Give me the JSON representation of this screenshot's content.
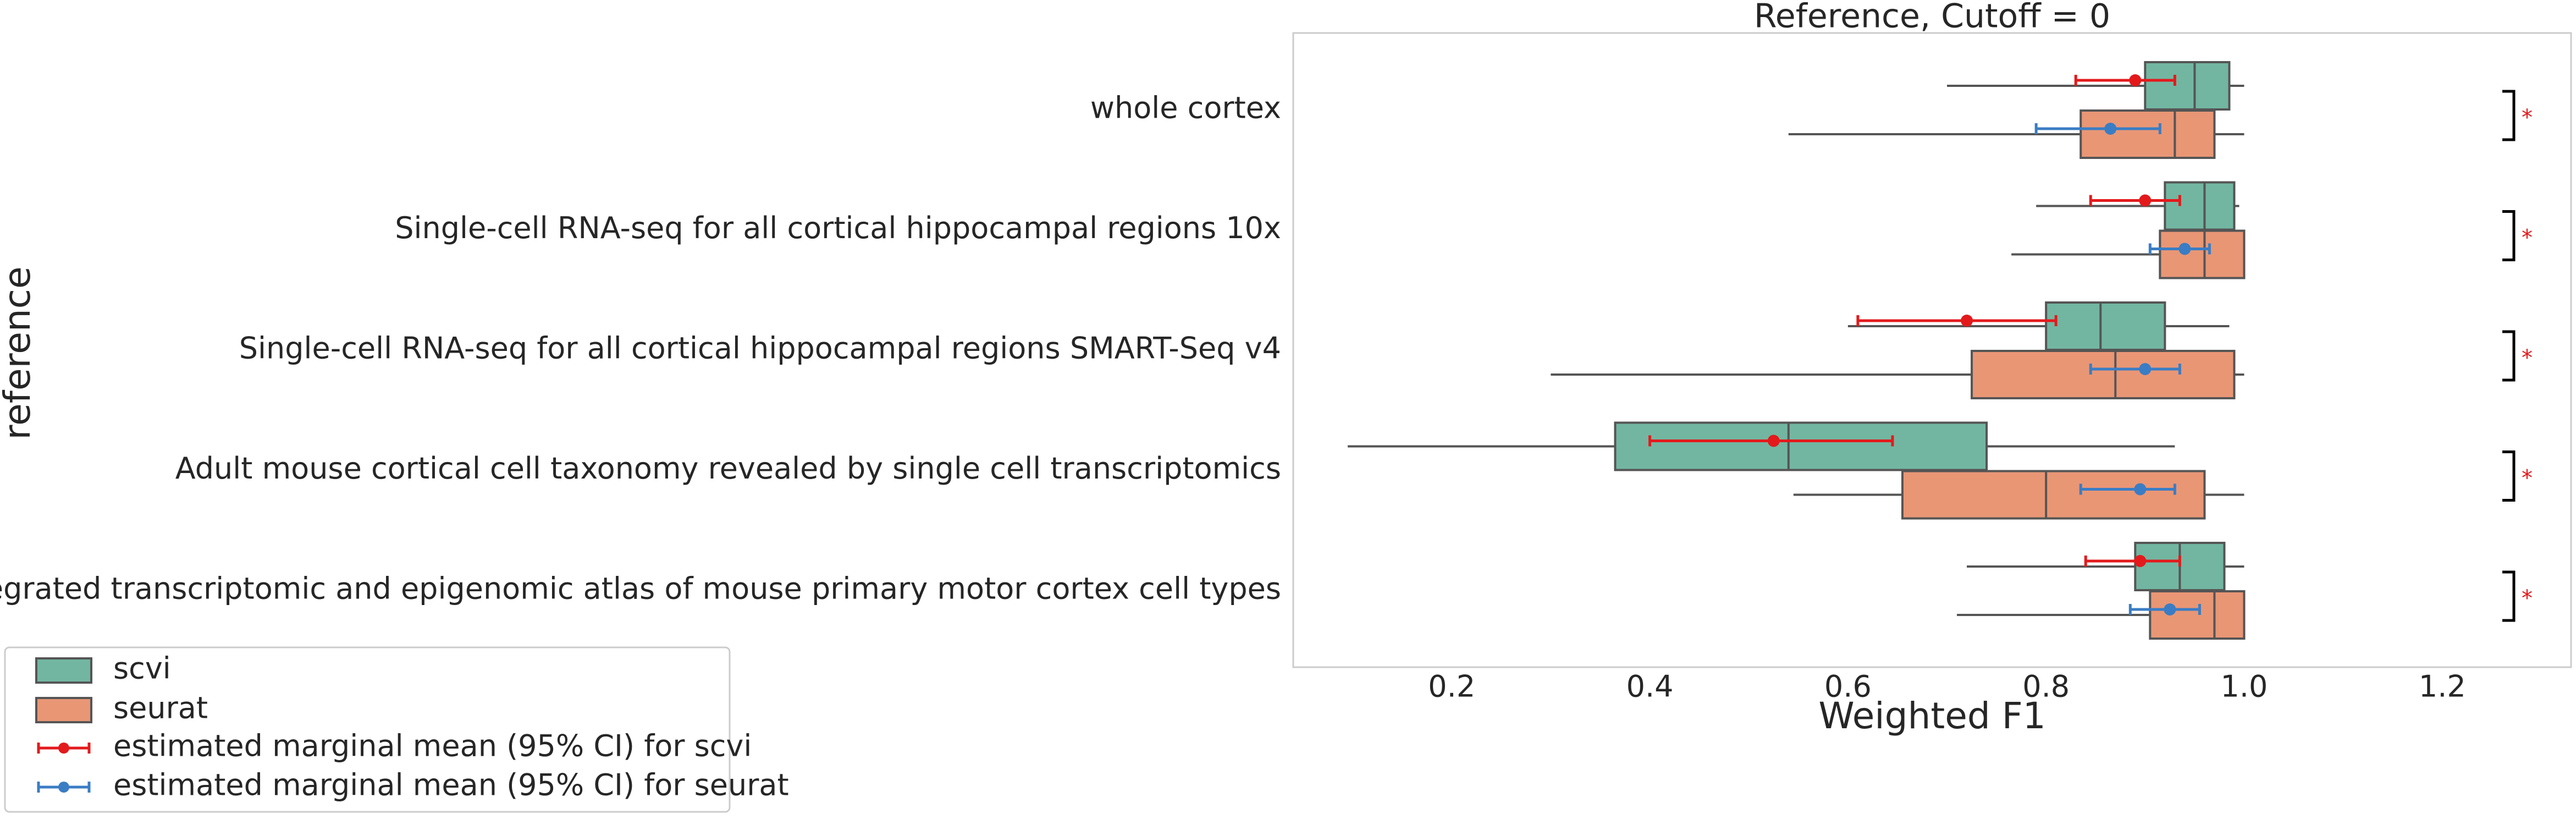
{
  "chart_data": {
    "type": "box",
    "title": "Reference, Cutoff = 0",
    "xlabel": "Weighted F1",
    "ylabel": "reference",
    "categories": [
      "whole cortex",
      "Single-cell RNA-seq for all cortical  hippocampal regions 10x",
      "Single-cell RNA-seq for all cortical  hippocampal regions SMART-Seq v4",
      "Adult mouse cortical cell taxonomy revealed by single cell transcriptomics",
      "An integrated transcriptomic and epigenomic atlas of mouse primary motor cortex cell types"
    ],
    "series": [
      {
        "name": "scvi",
        "color": "#72b6a1",
        "whislo": [
          0.7,
          0.79,
          0.6,
          0.095,
          0.72
        ],
        "q1": [
          0.9,
          0.92,
          0.8,
          0.365,
          0.89
        ],
        "med": [
          0.95,
          0.96,
          0.855,
          0.54,
          0.935
        ],
        "q3": [
          0.985,
          0.99,
          0.92,
          0.74,
          0.98
        ],
        "whishi": [
          1.0,
          0.995,
          0.985,
          0.93,
          1.0
        ]
      },
      {
        "name": "seurat",
        "color": "#e99675",
        "whislo": [
          0.54,
          0.765,
          0.3,
          0.545,
          0.71
        ],
        "q1": [
          0.835,
          0.915,
          0.725,
          0.655,
          0.905
        ],
        "med": [
          0.93,
          0.96,
          0.87,
          0.8,
          0.97
        ],
        "q3": [
          0.97,
          1.0,
          0.99,
          0.96,
          1.0
        ],
        "whishi": [
          1.0,
          1.0,
          1.0,
          1.0,
          1.0
        ]
      }
    ],
    "means": [
      {
        "name": "estimated marginal mean (95% CI) for scvi",
        "color": "#e31a1c",
        "values": [
          0.89,
          0.9,
          0.72,
          0.525,
          0.895
        ],
        "ci_low": [
          0.83,
          0.845,
          0.61,
          0.4,
          0.84
        ],
        "ci_high": [
          0.93,
          0.935,
          0.81,
          0.645,
          0.935
        ]
      },
      {
        "name": "estimated marginal mean (95% CI) for seurat",
        "color": "#3a7dc4",
        "values": [
          0.865,
          0.94,
          0.9,
          0.895,
          0.925
        ],
        "ci_low": [
          0.79,
          0.905,
          0.845,
          0.835,
          0.885
        ],
        "ci_high": [
          0.915,
          0.965,
          0.935,
          0.93,
          0.955
        ]
      }
    ],
    "significance": [
      "*",
      "*",
      "*",
      "*",
      "*"
    ],
    "significance_color": "#e31a1c",
    "xlim": [
      0.04,
      1.33
    ],
    "xticks": [
      0.2,
      0.4,
      0.6,
      0.8,
      {
        "value": 1,
        "label": "1.0"
      },
      1.2
    ],
    "grid": false,
    "legend": "lower left"
  }
}
